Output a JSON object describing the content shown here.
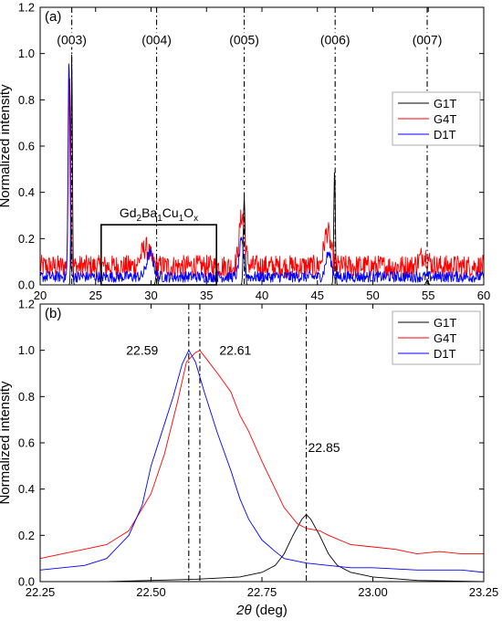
{
  "chart_data": [
    {
      "panel_label": "(a)",
      "type": "line",
      "xlabel": "",
      "ylabel": "Normalized intensity",
      "xlim": [
        20,
        60
      ],
      "ylim": [
        0,
        1.2
      ],
      "xticks": [
        "20",
        "25",
        "30",
        "35",
        "40",
        "45",
        "50",
        "55",
        "60"
      ],
      "yticks": [
        "0.0",
        "0.2",
        "0.4",
        "0.6",
        "0.8",
        "1.0",
        "1.2"
      ],
      "grid": false,
      "legend_position": "right",
      "peak_labels": [
        {
          "text": "(003)",
          "x": 22.85
        },
        {
          "text": "(004)",
          "x": 30.5
        },
        {
          "text": "(005)",
          "x": 38.4
        },
        {
          "text": "(006)",
          "x": 46.6
        },
        {
          "text": "(007)",
          "x": 54.9
        }
      ],
      "box": {
        "x0": 25.5,
        "x1": 35.9,
        "y0": 0,
        "y1": 0.26
      },
      "box_label": {
        "parts": [
          [
            "Gd",
            ""
          ],
          [
            "2",
            "sub"
          ],
          [
            "Ba",
            ""
          ],
          [
            "1",
            "sub"
          ],
          [
            "Cu",
            ""
          ],
          [
            "1",
            "sub"
          ],
          [
            "O",
            ""
          ],
          [
            "x",
            "sub"
          ]
        ]
      },
      "series": [
        {
          "name": "G1T",
          "color": "#000000",
          "baseline": 0.0,
          "noise": 0.0,
          "peaks": [
            [
              22.85,
              1.0,
              0.06
            ],
            [
              30.5,
              0.05,
              0.08
            ],
            [
              38.4,
              0.38,
              0.08
            ],
            [
              46.55,
              0.5,
              0.07
            ],
            [
              54.9,
              0.02,
              0.1
            ]
          ]
        },
        {
          "name": "G4T",
          "color": "#ff0000",
          "baseline": 0.08,
          "noise": 0.05,
          "peaks": [
            [
              22.65,
              0.85,
              0.1
            ],
            [
              29.5,
              0.08,
              0.4
            ],
            [
              38.2,
              0.22,
              0.25
            ],
            [
              45.9,
              0.15,
              0.3
            ],
            [
              54.6,
              0.05,
              0.4
            ]
          ]
        },
        {
          "name": "D1T",
          "color": "#0000ff",
          "baseline": 0.035,
          "noise": 0.025,
          "peaks": [
            [
              22.6,
              0.95,
              0.08
            ],
            [
              29.9,
              0.1,
              0.3
            ],
            [
              38.15,
              0.15,
              0.2
            ],
            [
              46.0,
              0.1,
              0.25
            ]
          ]
        }
      ]
    },
    {
      "panel_label": "(b)",
      "type": "line",
      "xlabel_symbol": "2θ",
      "xlabel_unit": " (deg)",
      "ylabel": "Normalized intensity",
      "xlim": [
        22.25,
        23.25
      ],
      "ylim": [
        0,
        1.2
      ],
      "xticks": [
        "22.25",
        "22.50",
        "22.75",
        "23.00",
        "23.25"
      ],
      "yticks": [
        "0.0",
        "0.2",
        "0.4",
        "0.6",
        "0.8",
        "1.0",
        "1.2"
      ],
      "grid": false,
      "legend_position": "right",
      "vlines": [
        22.585,
        22.61,
        22.85
      ],
      "annotations": [
        {
          "text": "22.59",
          "x": 22.48,
          "y": 1.0
        },
        {
          "text": "22.61",
          "x": 22.69,
          "y": 1.0
        },
        {
          "text": "22.85",
          "x": 22.89,
          "y": 0.58
        }
      ],
      "series": [
        {
          "name": "G1T",
          "color": "#000000",
          "x": [
            22.25,
            22.4,
            22.5,
            22.6,
            22.7,
            22.75,
            22.78,
            22.8,
            22.82,
            22.84,
            22.85,
            22.86,
            22.88,
            22.9,
            22.92,
            22.95,
            23.0,
            23.1,
            23.25
          ],
          "y": [
            0.0,
            0.0,
            0.005,
            0.01,
            0.02,
            0.04,
            0.07,
            0.12,
            0.2,
            0.27,
            0.29,
            0.27,
            0.2,
            0.12,
            0.07,
            0.04,
            0.02,
            0.005,
            0.0
          ]
        },
        {
          "name": "G4T",
          "color": "#ff0000",
          "x": [
            22.25,
            22.3,
            22.35,
            22.4,
            22.45,
            22.5,
            22.53,
            22.56,
            22.58,
            22.6,
            22.61,
            22.63,
            22.65,
            22.68,
            22.7,
            22.72,
            22.75,
            22.78,
            22.8,
            22.83,
            22.85,
            22.88,
            22.9,
            22.95,
            23.0,
            23.05,
            23.1,
            23.15,
            23.2,
            23.25
          ],
          "y": [
            0.1,
            0.12,
            0.14,
            0.16,
            0.22,
            0.38,
            0.55,
            0.78,
            0.95,
            0.99,
            1.0,
            0.95,
            0.9,
            0.82,
            0.72,
            0.65,
            0.52,
            0.4,
            0.32,
            0.25,
            0.23,
            0.22,
            0.2,
            0.16,
            0.15,
            0.14,
            0.12,
            0.13,
            0.12,
            0.12
          ]
        },
        {
          "name": "D1T",
          "color": "#0000ff",
          "x": [
            22.25,
            22.3,
            22.35,
            22.4,
            22.45,
            22.48,
            22.5,
            22.52,
            22.55,
            22.57,
            22.585,
            22.6,
            22.62,
            22.65,
            22.68,
            22.7,
            22.72,
            22.75,
            22.78,
            22.8,
            22.85,
            22.9,
            22.95,
            23.0,
            23.1,
            23.2,
            23.25
          ],
          "y": [
            0.05,
            0.06,
            0.07,
            0.1,
            0.2,
            0.33,
            0.5,
            0.62,
            0.8,
            0.94,
            1.0,
            0.95,
            0.82,
            0.64,
            0.48,
            0.36,
            0.27,
            0.18,
            0.13,
            0.1,
            0.08,
            0.07,
            0.06,
            0.06,
            0.05,
            0.05,
            0.04
          ]
        }
      ]
    }
  ]
}
